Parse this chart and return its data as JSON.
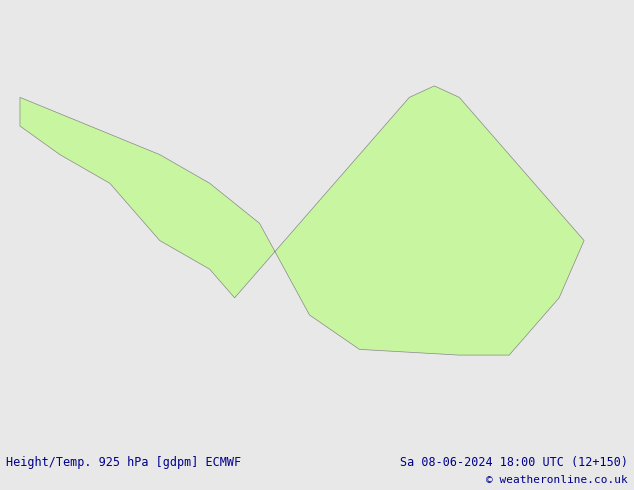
{
  "title_left": "Height/Temp. 925 hPa [gdpm] ECMWF",
  "title_right": "Sa 08-06-2024 18:00 UTC (12+150)",
  "copyright": "© weatheronline.co.uk",
  "bg_color": "#e8e8e8",
  "land_color": "#c8f5a0",
  "ocean_color": "#e0e0e0",
  "border_color": "#888888",
  "text_color": "#00008B",
  "figsize": [
    6.34,
    4.9
  ],
  "dpi": 100,
  "font_size_labels": 8.5,
  "font_size_copyright": 8
}
